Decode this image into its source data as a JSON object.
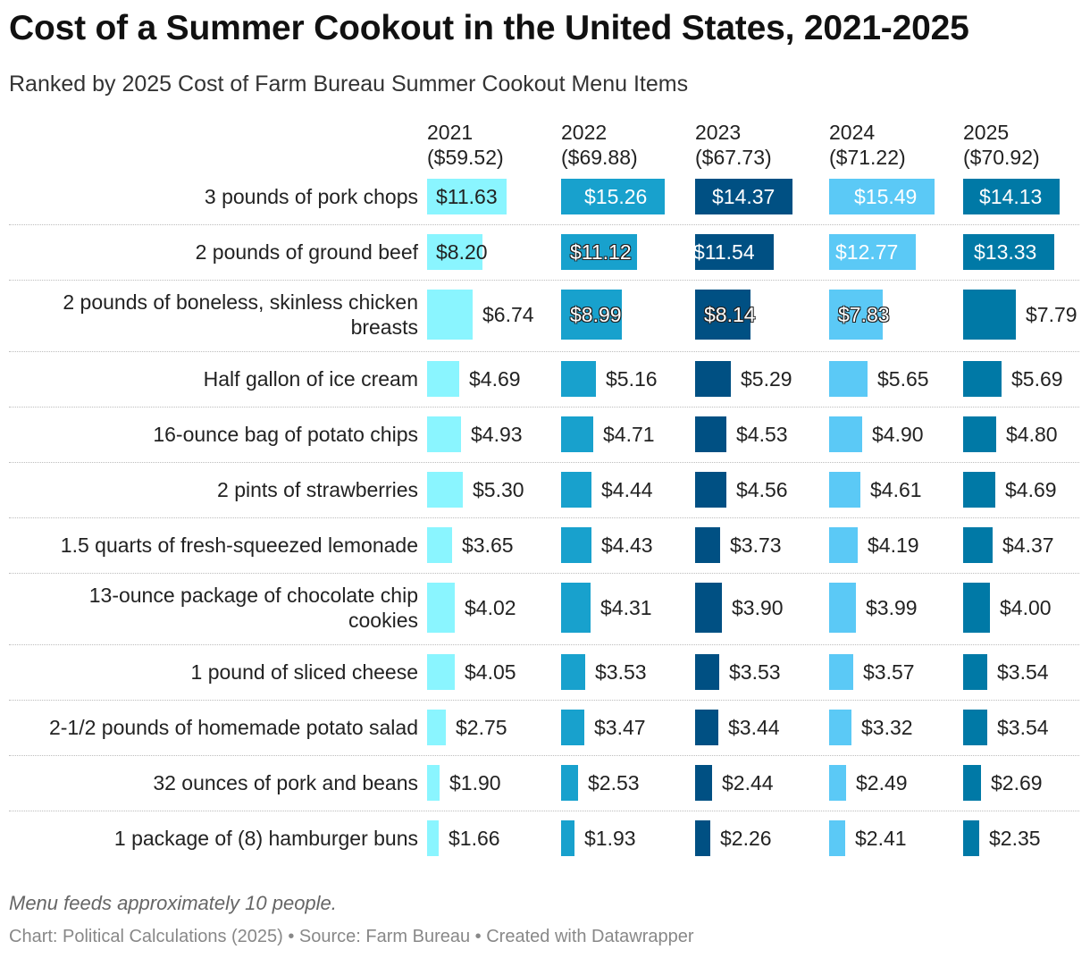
{
  "header": {
    "title": "Cost of a Summer Cookout in the United States, 2021-2025",
    "subtitle": "Ranked by 2025 Cost of Farm Bureau Summer Cookout Menu Items"
  },
  "footer": {
    "note": "Menu feeds approximately 10 people.",
    "source": "Chart: Political Calculations (2025) • Source: Farm Bureau • Created with Datawrapper"
  },
  "chart_data": {
    "type": "bar",
    "title": "Cost of a Summer Cookout in the United States, 2021-2025",
    "subtitle": "Ranked by 2025 Cost of Farm Bureau Summer Cookout Menu Items",
    "orientation": "horizontal",
    "categories": [
      "3 pounds of pork chops",
      "2 pounds of ground beef",
      "2 pounds of boneless, skinless chicken breasts",
      "Half gallon of ice cream",
      "16-ounce bag of potato chips",
      "2 pints of strawberries",
      "1.5 quarts of fresh-squeezed lemonade",
      "13-ounce package of chocolate chip cookies",
      "1 pound of sliced cheese",
      "2-1/2 pounds of homemade potato salad",
      "32 ounces of pork and beans",
      "1 package of (8) hamburger buns"
    ],
    "series": [
      {
        "name": "2021",
        "total_label": "($59.52)",
        "color": "#8af5ff",
        "values": [
          11.63,
          8.2,
          6.74,
          4.69,
          4.93,
          5.3,
          3.65,
          4.02,
          4.05,
          2.75,
          1.9,
          1.66
        ]
      },
      {
        "name": "2022",
        "total_label": "($69.88)",
        "color": "#18a1cd",
        "values": [
          15.26,
          11.12,
          8.99,
          5.16,
          4.71,
          4.44,
          4.43,
          4.31,
          3.53,
          3.47,
          2.53,
          1.93
        ]
      },
      {
        "name": "2023",
        "total_label": "($67.73)",
        "color": "#005083",
        "values": [
          14.37,
          11.54,
          8.14,
          5.29,
          4.53,
          4.56,
          3.73,
          3.9,
          3.53,
          3.44,
          2.44,
          2.26
        ]
      },
      {
        "name": "2024",
        "total_label": "($71.22)",
        "color": "#5bc9f6",
        "values": [
          15.49,
          12.77,
          7.83,
          5.65,
          4.9,
          4.61,
          4.19,
          3.99,
          3.57,
          3.32,
          2.49,
          2.41
        ]
      },
      {
        "name": "2025",
        "total_label": "($70.92)",
        "color": "#0079a6",
        "values": [
          14.13,
          13.33,
          7.79,
          5.69,
          4.8,
          4.69,
          4.37,
          4.0,
          3.54,
          3.54,
          2.69,
          2.35
        ]
      }
    ],
    "value_prefix": "$",
    "xlim": [
      0,
      15.49
    ],
    "grid": false,
    "legend": "column headers"
  }
}
